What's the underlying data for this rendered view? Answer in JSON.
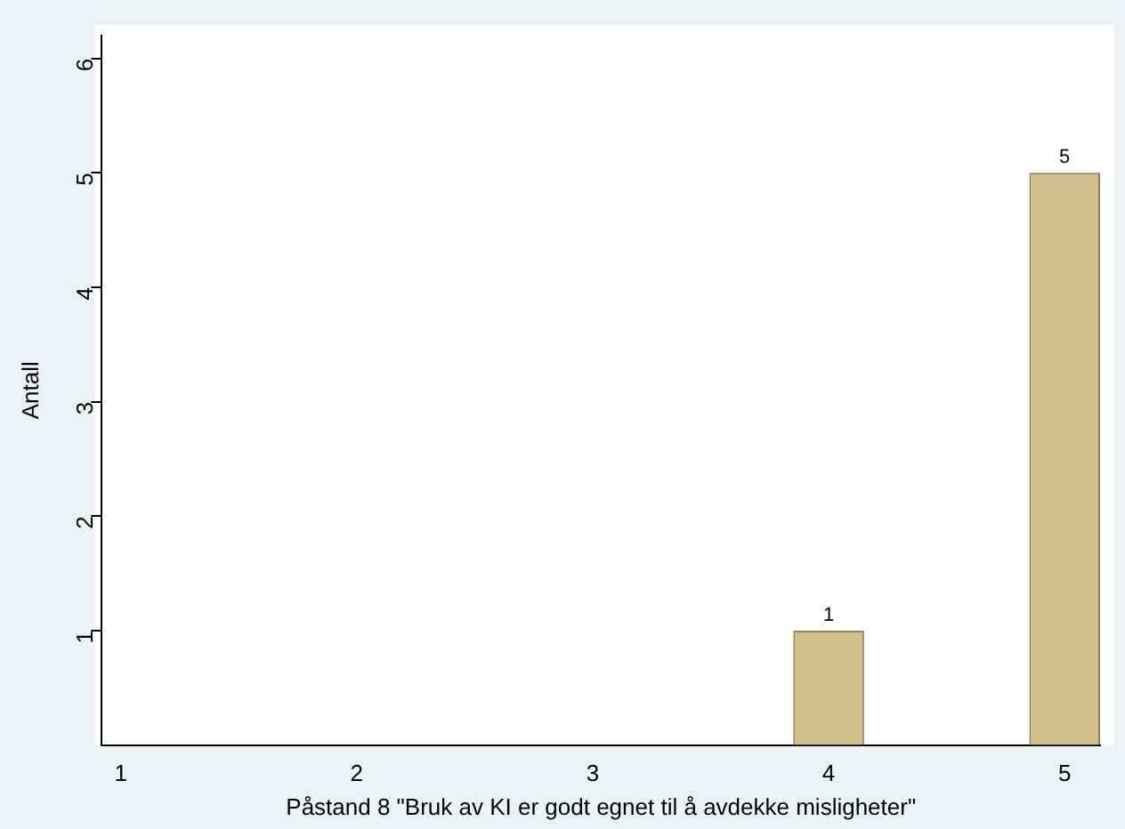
{
  "chart_data": {
    "type": "bar",
    "xlabel": "Påstand 8 \"Bruk av KI er godt egnet til å avdekke misligheter\"",
    "ylabel": "Antall",
    "x": [
      4,
      5
    ],
    "values": [
      1,
      5
    ],
    "color": "#cfc08a",
    "data_labels": true,
    "grid": false,
    "legend": false,
    "xlim": [
      0.92,
      5.15
    ],
    "xticks": [
      1,
      2,
      3,
      4,
      5
    ],
    "ylim": [
      0,
      6.2
    ],
    "yticks": [
      1,
      2,
      3,
      4,
      5,
      6
    ]
  }
}
